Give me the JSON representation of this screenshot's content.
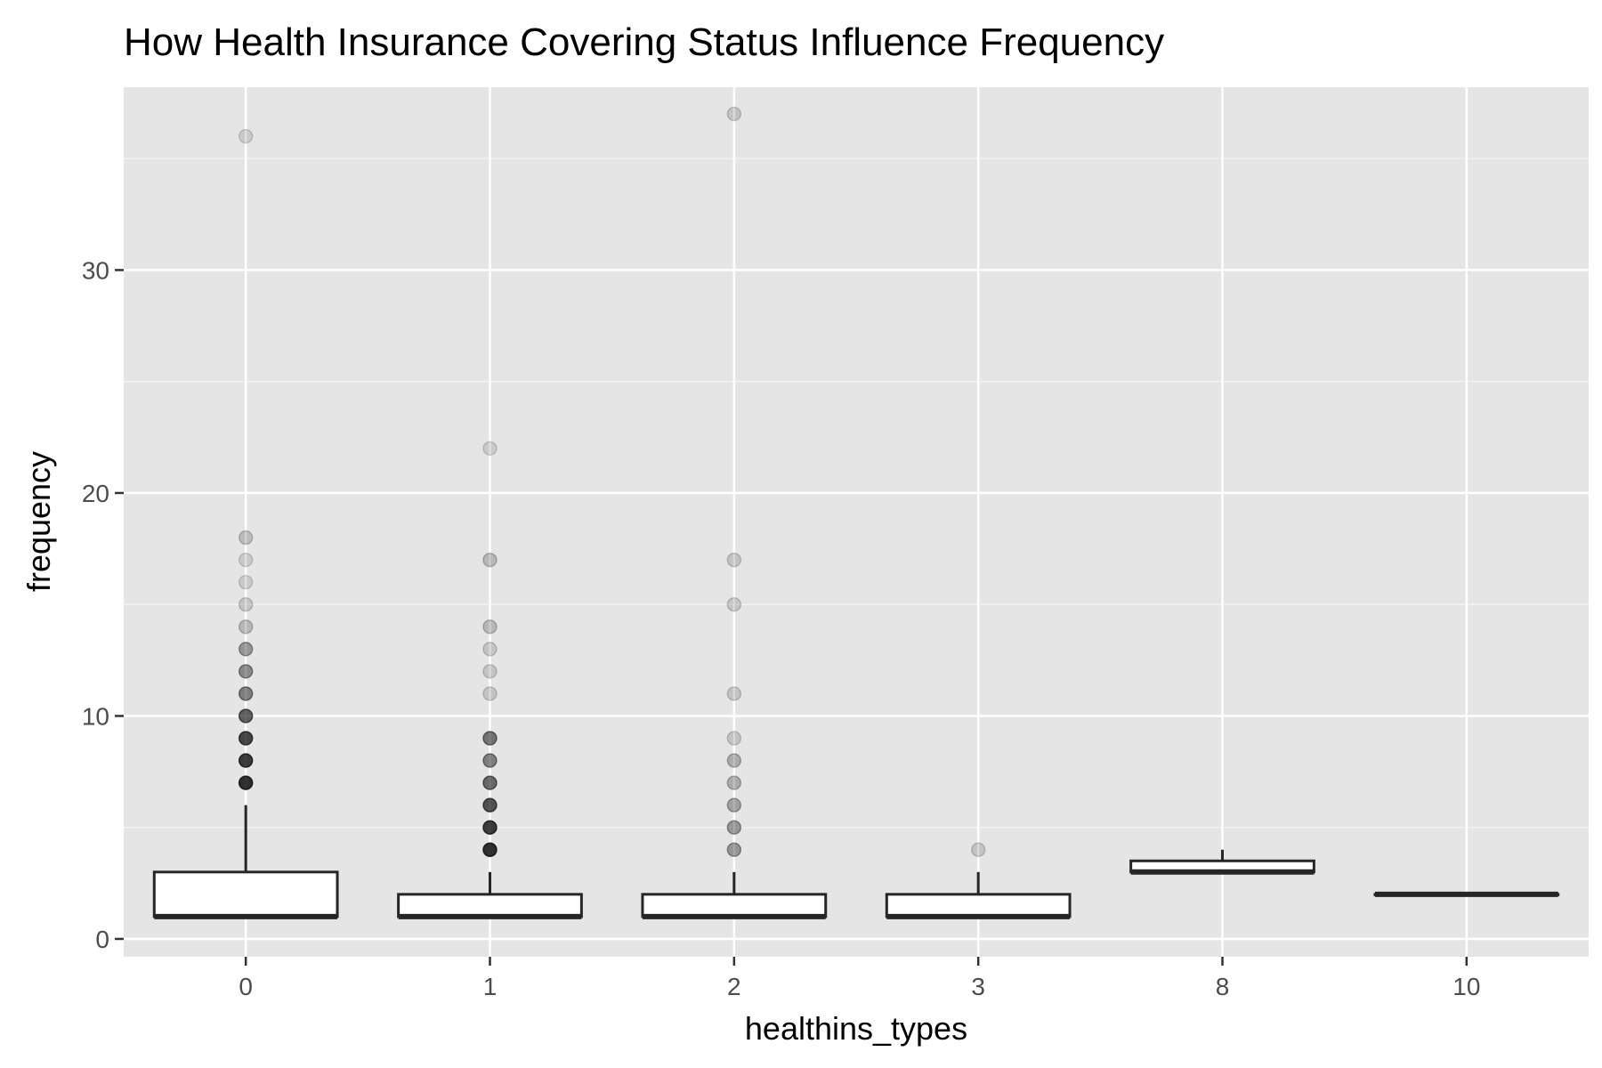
{
  "chart_data": {
    "type": "box",
    "title": "How Health Insurance Covering Status Influence Frequency",
    "xlabel": "healthins_types",
    "ylabel": "frequency",
    "categories": [
      "0",
      "1",
      "2",
      "3",
      "8",
      "10"
    ],
    "ylim": [
      -0.8,
      38.2
    ],
    "yticks": [
      0,
      10,
      20,
      30
    ],
    "grid": true,
    "background": "#e5e5e5",
    "box_fill": "#ffffff",
    "line_color": "#262626",
    "point_color": "#000000",
    "boxes": [
      {
        "category": "0",
        "q1": 1,
        "median": 1,
        "q3": 3,
        "whisker_low": 1,
        "whisker_high": 6,
        "outliers": [
          7,
          8,
          9,
          10,
          11,
          12,
          13,
          14,
          15,
          16,
          17,
          18,
          36
        ],
        "outlier_opacity": [
          0.8,
          0.75,
          0.7,
          0.6,
          0.45,
          0.4,
          0.35,
          0.2,
          0.15,
          0.12,
          0.12,
          0.18,
          0.12
        ]
      },
      {
        "category": "1",
        "q1": 1,
        "median": 1,
        "q3": 2,
        "whisker_low": 1,
        "whisker_high": 3,
        "outliers": [
          4,
          5,
          6,
          7,
          8,
          9,
          11,
          12,
          13,
          14,
          17,
          22
        ],
        "outlier_opacity": [
          0.8,
          0.75,
          0.65,
          0.55,
          0.45,
          0.5,
          0.15,
          0.15,
          0.15,
          0.2,
          0.2,
          0.12
        ]
      },
      {
        "category": "2",
        "q1": 1,
        "median": 1,
        "q3": 2,
        "whisker_low": 1,
        "whisker_high": 3,
        "outliers": [
          4,
          5,
          6,
          7,
          8,
          9,
          11,
          15,
          17,
          37
        ],
        "outlier_opacity": [
          0.35,
          0.35,
          0.3,
          0.25,
          0.25,
          0.15,
          0.15,
          0.15,
          0.15,
          0.15
        ]
      },
      {
        "category": "3",
        "q1": 1,
        "median": 1,
        "q3": 2,
        "whisker_low": 1,
        "whisker_high": 3,
        "outliers": [
          4
        ],
        "outlier_opacity": [
          0.15
        ]
      },
      {
        "category": "8",
        "q1": 3,
        "median": 3,
        "q3": 3.5,
        "whisker_low": 3,
        "whisker_high": 4,
        "outliers": [],
        "outlier_opacity": []
      },
      {
        "category": "10",
        "q1": 2,
        "median": 2,
        "q3": 2,
        "whisker_low": 2,
        "whisker_high": 2,
        "outliers": [],
        "outlier_opacity": []
      }
    ]
  }
}
